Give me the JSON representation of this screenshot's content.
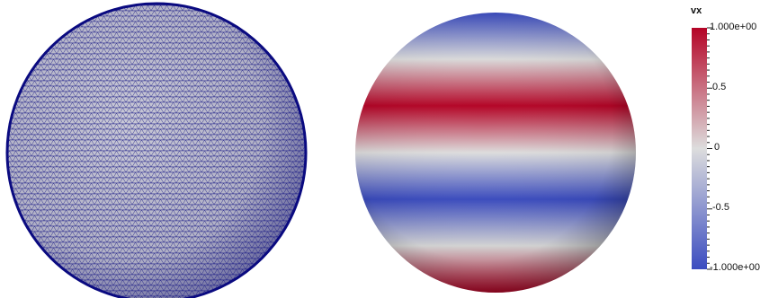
{
  "colorbar": {
    "title": "vx",
    "labels": [
      "1.000e+00",
      "0.5",
      "0",
      "-0.5",
      "-1.000e+00"
    ],
    "range": [
      -1,
      1
    ],
    "low_color": "#3b4cc0",
    "mid_color": "#dddddd",
    "high_color": "#b40426"
  },
  "mesh": {
    "edge_color": "#0a0a80",
    "face_color": "#c8c8d2"
  },
  "field": {
    "name": "vx",
    "bands": [
      -1,
      0,
      1,
      0,
      -1,
      0,
      1
    ]
  }
}
